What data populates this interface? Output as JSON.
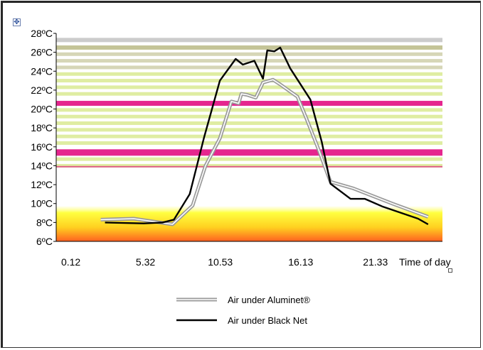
{
  "chart_data": {
    "type": "line",
    "title": "",
    "xlabel": "Time of day",
    "ylabel": "",
    "x_tick_labels": [
      "0.12",
      "5.32",
      "10.53",
      "16.13",
      "21.33"
    ],
    "x_tick_values": [
      0.12,
      5.32,
      10.53,
      16.13,
      21.33
    ],
    "y_tick_labels": [
      "6ºC",
      "8ºC",
      "10ºC",
      "12ºC",
      "14ºC",
      "16ºC",
      "18ºC",
      "20ºC",
      "22ºC",
      "24ºC",
      "26ºC",
      "28ºC"
    ],
    "y_tick_values": [
      6,
      8,
      10,
      12,
      14,
      16,
      18,
      20,
      22,
      24,
      26,
      28
    ],
    "xlim": [
      -0.9,
      26.0
    ],
    "ylim": [
      6,
      28
    ],
    "series": [
      {
        "name": "Air under Aluminet®",
        "color": "#9a9a9a",
        "x": [
          2.2,
          4.5,
          7.2,
          8.6,
          9.5,
          10.5,
          11.3,
          11.8,
          12.0,
          12.4,
          13.0,
          13.5,
          14.2,
          14.7,
          15.9,
          16.5,
          17.3,
          18.2,
          19.8,
          22.5,
          25.0
        ],
        "y": [
          8.3,
          8.4,
          7.8,
          9.8,
          14.0,
          16.9,
          20.8,
          20.6,
          21.6,
          21.5,
          21.2,
          22.8,
          23.1,
          22.6,
          21.3,
          19.1,
          16.0,
          12.3,
          11.6,
          10.0,
          8.6
        ]
      },
      {
        "name": "Air under  Black Net",
        "color": "#000000",
        "x": [
          2.5,
          5.2,
          6.5,
          7.3,
          8.4,
          9.4,
          10.5,
          11.6,
          12.1,
          12.9,
          13.5,
          13.8,
          14.3,
          14.7,
          15.4,
          16.8,
          17.6,
          18.2,
          19.6,
          20.6,
          21.8,
          24.3,
          25.0
        ],
        "y": [
          8.0,
          7.9,
          8.0,
          8.3,
          11.0,
          17.0,
          23.0,
          25.3,
          24.7,
          25.1,
          23.2,
          26.2,
          26.1,
          26.5,
          24.3,
          21.0,
          16.5,
          12.1,
          10.5,
          10.5,
          9.7,
          8.4,
          7.8
        ]
      }
    ],
    "legend_position": "bottom",
    "grid": false,
    "background_bands_y": [
      27.3,
      26.5,
      25.8,
      25.1,
      24.4,
      23.7,
      23.0,
      22.3,
      21.6,
      20.6,
      19.9,
      19.2,
      18.5,
      17.8,
      17.1,
      16.4,
      15.4,
      14.7,
      14.0
    ],
    "highlight_bands_y": [
      20.6,
      15.4
    ],
    "low_gradient_range": [
      6,
      9.7
    ],
    "colors": {
      "series_aluminet": "#9a9a9a",
      "series_black": "#000000",
      "highlight_band": "#e0007a",
      "band_green": "#b8d830",
      "band_olive": "#8a8a30",
      "gradient_top": "#ffff40",
      "gradient_bottom": "#ff6020"
    }
  },
  "handles": {
    "move_icon": "move-arrows-icon",
    "resize_icon": "resize-handle-icon"
  }
}
